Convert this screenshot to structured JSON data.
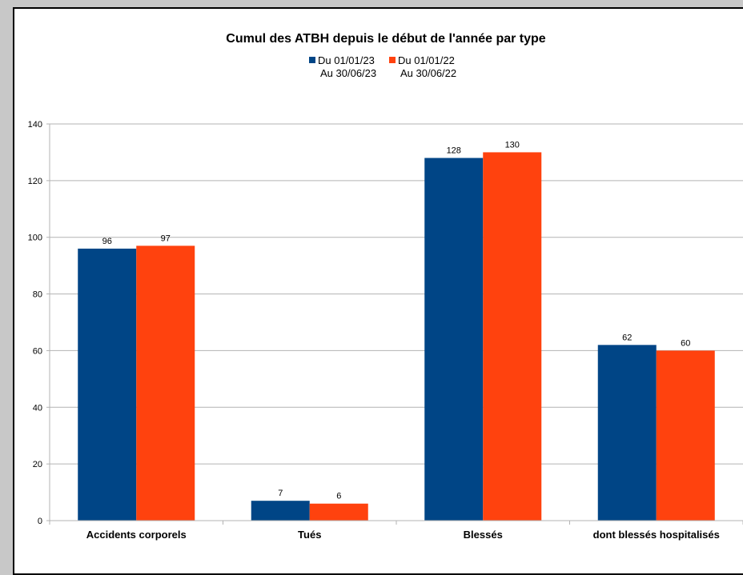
{
  "chart_data": {
    "type": "bar",
    "title": "Cumul des ATBH depuis le début de l'année par type",
    "categories": [
      "Accidents corporels",
      "Tués",
      "Blessés",
      "dont blessés hospitalisés"
    ],
    "series": [
      {
        "name_line1": "Du 01/01/23",
        "name_line2": "Au 30/06/23",
        "color": "#004586",
        "values": [
          96,
          7,
          128,
          62
        ]
      },
      {
        "name_line1": "Du 01/01/22",
        "name_line2": "Au 30/06/22",
        "color": "#ff420e",
        "values": [
          97,
          6,
          130,
          60
        ]
      }
    ],
    "ylim": [
      0,
      140
    ],
    "yticks": [
      0,
      20,
      40,
      60,
      80,
      100,
      120,
      140
    ],
    "grid": true,
    "legend_position": "top"
  }
}
